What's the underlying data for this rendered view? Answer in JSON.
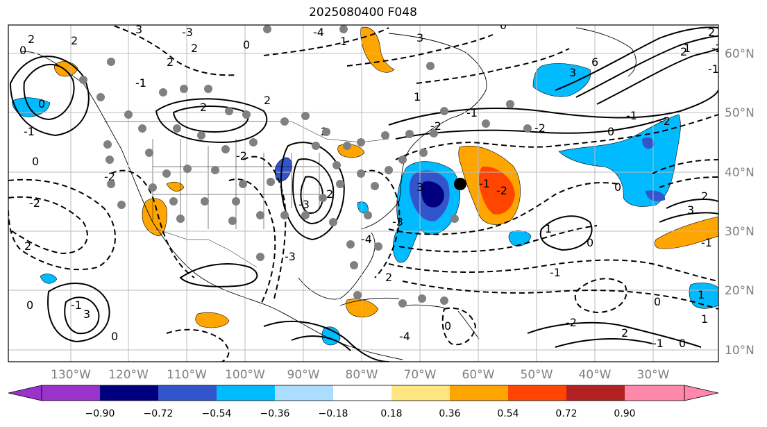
{
  "title": "2025080400 F048",
  "lat_labels": [
    "60°N",
    "50°N",
    "40°N",
    "30°N",
    "20°N",
    "10°N"
  ],
  "lon_labels": [
    "130°W",
    "120°W",
    "110°W",
    "100°W",
    "90°W",
    "80°W",
    "70°W",
    "60°W",
    "50°W",
    "40°W",
    "30°W"
  ],
  "colorbar": {
    "colors": [
      "#9933cc",
      "#00007f",
      "#3355cc",
      "#00bbff",
      "#aaddff",
      "#ffffff",
      "#ffe680",
      "#ffa500",
      "#ff4500",
      "#b22222",
      "#ff88aa"
    ],
    "ticks": [
      "−0.90",
      "−0.72",
      "−0.54",
      "−0.36",
      "−0.18",
      "0.18",
      "0.36",
      "0.54",
      "0.72",
      "0.90"
    ]
  },
  "contour_labels": [
    "0",
    "2",
    "0",
    "2",
    "-1",
    "3",
    "2",
    "0",
    "-3",
    "0",
    "2",
    "-2",
    "2",
    "-4",
    "0",
    "2",
    "-1",
    "0",
    "2",
    "-3",
    "3",
    "3",
    "1",
    "2",
    "-2",
    "0",
    "1",
    "-2",
    "-1",
    "3",
    "-2",
    "-1",
    "6",
    "0",
    "-2",
    "2",
    "-1",
    "0",
    "3",
    "2",
    "-1",
    "-1",
    "0",
    "-1",
    "-2",
    "2",
    "0",
    "-1",
    "1",
    "-2",
    "1",
    "0",
    "1",
    "2",
    "-3",
    "-2",
    "-4",
    "-4",
    "-3",
    "2",
    "-2",
    "-1",
    "1",
    "3",
    "0",
    "2"
  ]
}
